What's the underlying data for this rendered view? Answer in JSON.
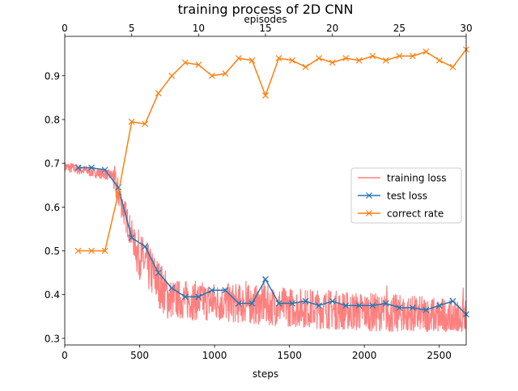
{
  "chart_data": {
    "type": "line",
    "title": "training process of 2D CNN",
    "xlabel": "steps",
    "x2label": "episodes",
    "xlim": [
      0,
      2680
    ],
    "x2lim": [
      0,
      30
    ],
    "ylim": [
      0.285,
      0.99
    ],
    "xticks": [
      0,
      500,
      1000,
      1500,
      2000,
      2500
    ],
    "x2ticks": [
      0,
      5,
      10,
      15,
      20,
      25,
      30
    ],
    "yticks": [
      0.3,
      0.4,
      0.5,
      0.6,
      0.7,
      0.8,
      0.9
    ],
    "legend_position": "center-right",
    "series": [
      {
        "name": "training loss",
        "axis": "steps",
        "color": "#ff7f7f",
        "marker": "none",
        "segments": [
          {
            "from": 0,
            "to": 320,
            "base_start": 0.692,
            "base_end": 0.672,
            "noise": 0.012
          },
          {
            "from": 320,
            "to": 480,
            "base_start": 0.672,
            "base_end": 0.5,
            "noise": 0.035
          },
          {
            "from": 480,
            "to": 700,
            "base_start": 0.5,
            "base_end": 0.39,
            "noise": 0.055
          },
          {
            "from": 700,
            "to": 2680,
            "base_start": 0.39,
            "base_end": 0.345,
            "noise": 0.045
          }
        ],
        "min_clip": 0.315,
        "spikes": [
          {
            "x": 580,
            "y": 0.48
          },
          {
            "x": 1210,
            "y": 0.43
          },
          {
            "x": 1330,
            "y": 0.44
          },
          {
            "x": 1760,
            "y": 0.41
          },
          {
            "x": 2150,
            "y": 0.42
          },
          {
            "x": 2660,
            "y": 0.415
          }
        ]
      },
      {
        "name": "test loss",
        "axis": "episodes",
        "color": "#1f77b4",
        "marker": "x",
        "x": [
          1,
          2,
          3,
          4,
          5,
          6,
          7,
          8,
          9,
          10,
          11,
          12,
          13,
          14,
          15,
          16,
          17,
          18,
          19,
          20,
          21,
          22,
          23,
          24,
          25,
          26,
          27,
          28,
          29,
          30
        ],
        "values": [
          0.69,
          0.69,
          0.685,
          0.645,
          0.53,
          0.51,
          0.45,
          0.415,
          0.395,
          0.395,
          0.41,
          0.41,
          0.38,
          0.38,
          0.435,
          0.38,
          0.38,
          0.385,
          0.375,
          0.385,
          0.375,
          0.375,
          0.375,
          0.38,
          0.37,
          0.37,
          0.365,
          0.375,
          0.385,
          0.355
        ]
      },
      {
        "name": "correct rate",
        "axis": "episodes",
        "color": "#ff7f0e",
        "marker": "x",
        "x": [
          1,
          2,
          3,
          4,
          5,
          6,
          7,
          8,
          9,
          10,
          11,
          12,
          13,
          14,
          15,
          16,
          17,
          18,
          19,
          20,
          21,
          22,
          23,
          24,
          25,
          26,
          27,
          28,
          29,
          30
        ],
        "values": [
          0.5,
          0.5,
          0.5,
          0.63,
          0.795,
          0.79,
          0.86,
          0.9,
          0.93,
          0.925,
          0.9,
          0.905,
          0.94,
          0.935,
          0.855,
          0.94,
          0.935,
          0.92,
          0.94,
          0.93,
          0.94,
          0.935,
          0.945,
          0.935,
          0.945,
          0.945,
          0.955,
          0.935,
          0.92,
          0.96
        ]
      }
    ]
  }
}
